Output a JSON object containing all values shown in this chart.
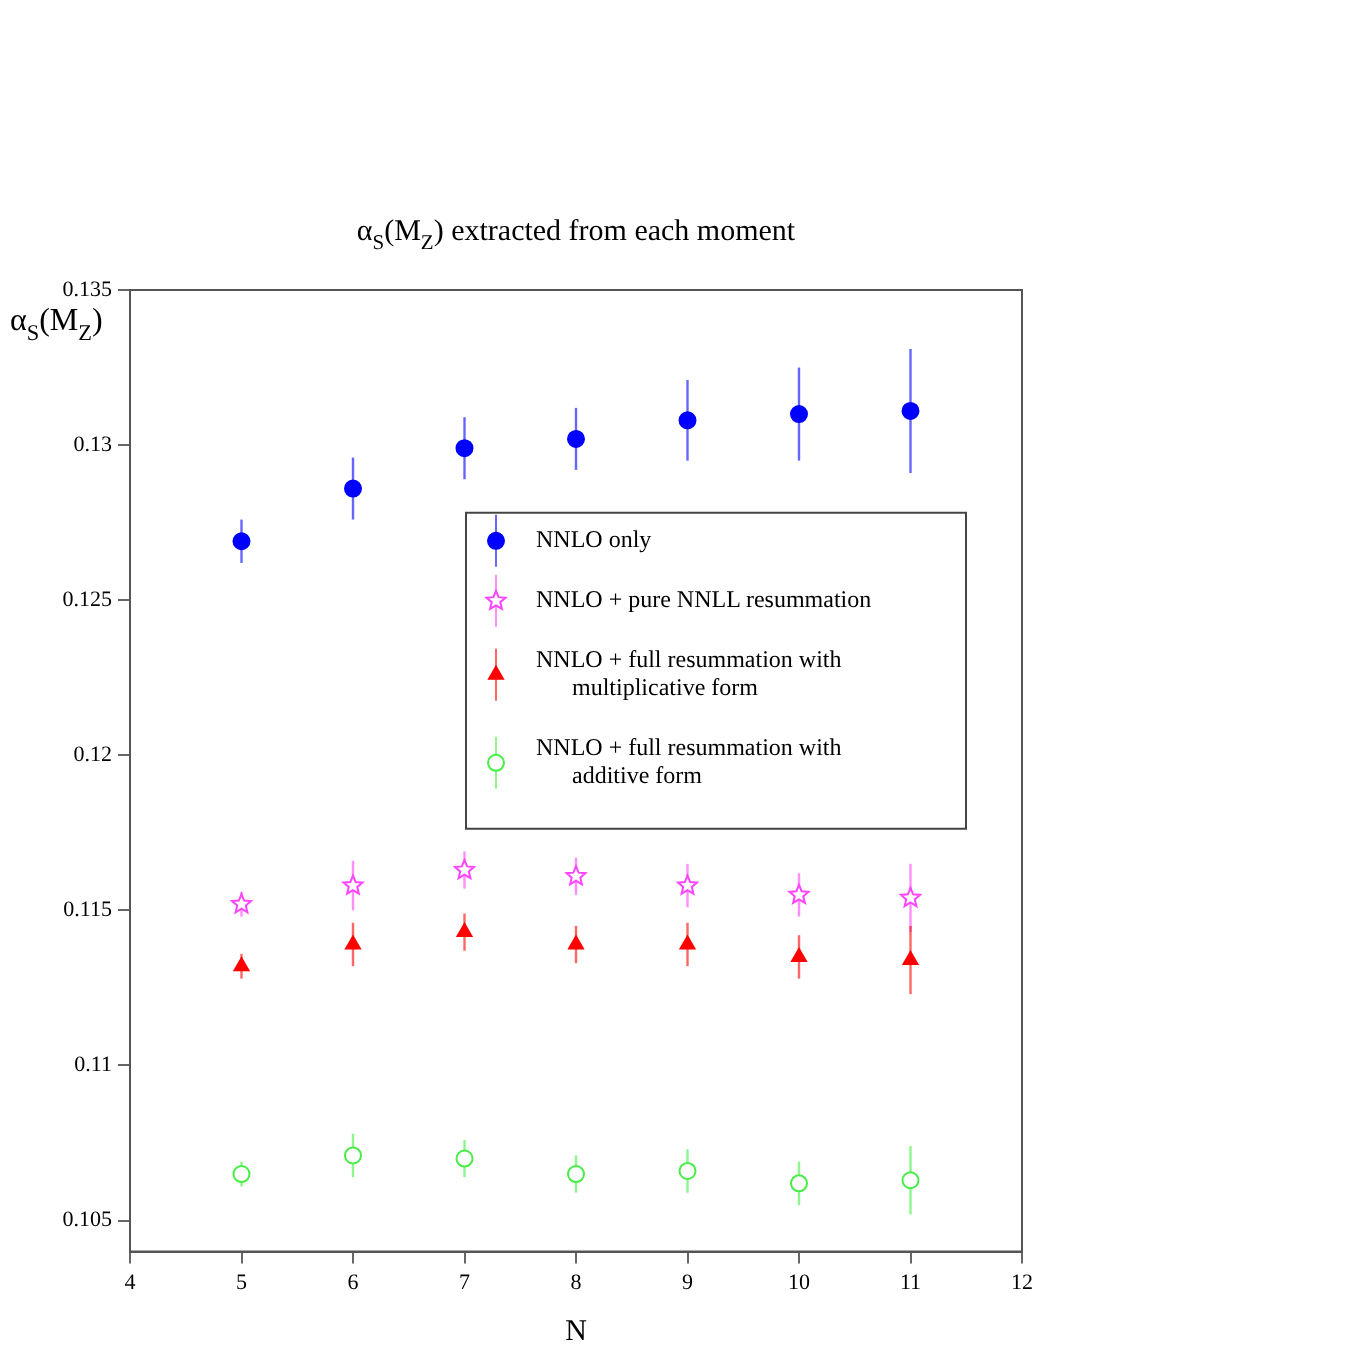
{
  "chart_data": {
    "type": "scatter",
    "title": "α$_{S}$(M$_{Z}$) extracted from each moment",
    "xlabel": "N",
    "ylabel": "α$_{S}$(M$_{Z}$)",
    "x": [
      5,
      6,
      7,
      8,
      9,
      10,
      11
    ],
    "xlim": [
      4,
      12
    ],
    "xticks": [
      4,
      5,
      6,
      7,
      8,
      9,
      10,
      11,
      12
    ],
    "ylim": [
      0.104,
      0.135
    ],
    "yticks": [
      0.105,
      0.11,
      0.115,
      0.12,
      0.125,
      0.13,
      0.135
    ],
    "grid": false,
    "legend": "right",
    "series": [
      {
        "name": "NNLO only",
        "color": "#0000ff",
        "marker": "circle",
        "values": [
          0.1269,
          0.1286,
          0.1299,
          0.1302,
          0.1308,
          0.131,
          0.1311
        ],
        "errors": [
          0.0007,
          0.001,
          0.001,
          0.001,
          0.0013,
          0.0015,
          0.002
        ]
      },
      {
        "name": "NNLO + pure NNLL resummation",
        "color": "#ff44ff",
        "marker": "star",
        "values": [
          0.1152,
          0.1158,
          0.1163,
          0.1161,
          0.1158,
          0.1155,
          0.1154
        ],
        "errors": [
          0.0004,
          0.0008,
          0.0006,
          0.0006,
          0.0007,
          0.0007,
          0.0011
        ]
      },
      {
        "name": "NNLO + full resummation with multiplicative form",
        "color": "#ff0000",
        "marker": "triangle",
        "values": [
          0.1132,
          0.1139,
          0.1143,
          0.1139,
          0.1139,
          0.1135,
          0.1134
        ],
        "errors": [
          0.0004,
          0.0007,
          0.0006,
          0.0006,
          0.0007,
          0.0007,
          0.0011
        ]
      },
      {
        "name": "NNLO + full resummation with additive form",
        "color": "#44ee44",
        "marker": "circle-open",
        "values": [
          0.1065,
          0.1071,
          0.107,
          0.1065,
          0.1066,
          0.1062,
          0.1063
        ],
        "errors": [
          0.0004,
          0.0007,
          0.0006,
          0.0006,
          0.0007,
          0.0007,
          0.0011
        ]
      }
    ]
  }
}
